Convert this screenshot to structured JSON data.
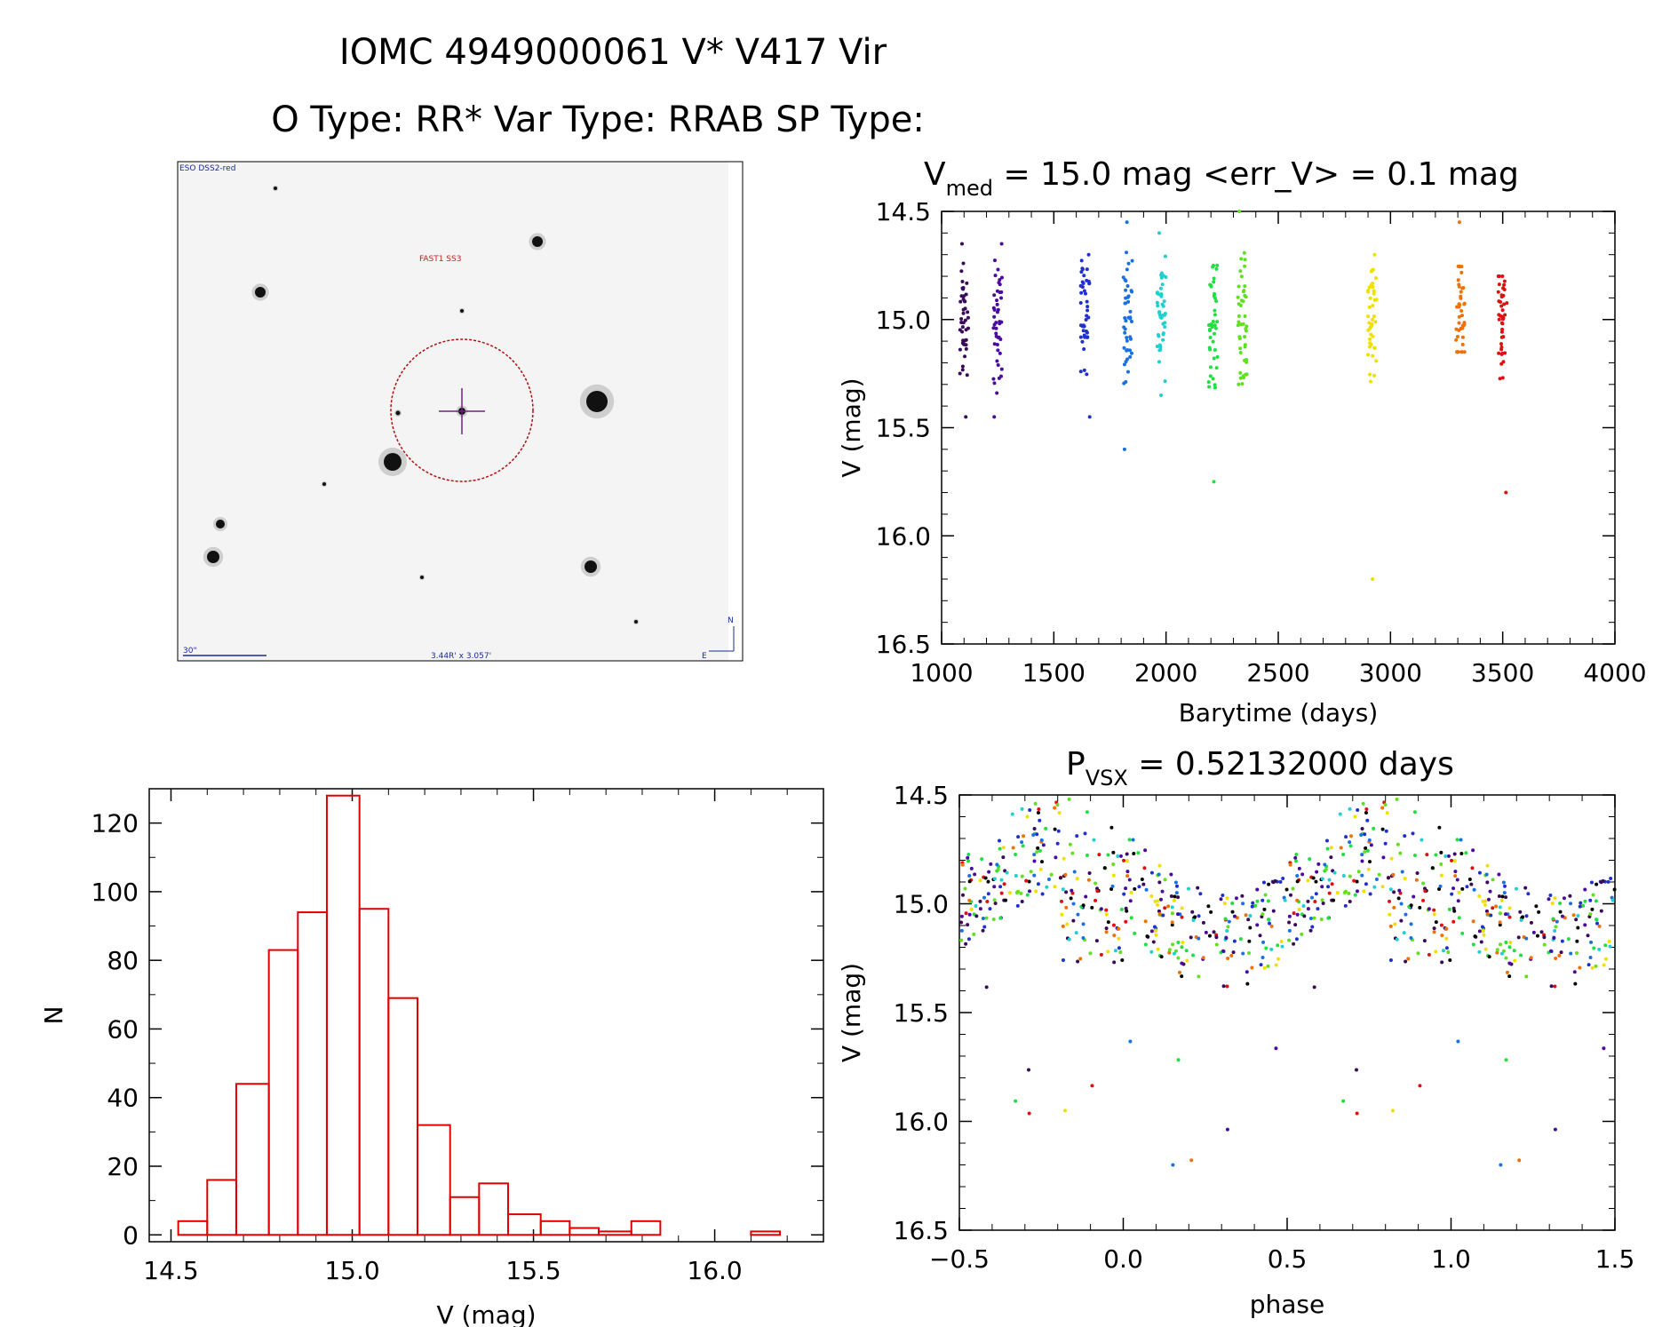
{
  "header": {
    "line1": "IOMC 4949000061    V* V417 Vir",
    "line2": "O Type: RR*  Var Type: RRAB  SP Type:"
  },
  "finder": {
    "survey_label": "ESO DSS2-red",
    "object_label": "FAST1 SS3",
    "scale_label": "30\"",
    "size_label": "3.44R' x 3.057'",
    "north_label": "N",
    "east_label": "E"
  },
  "chart_data": [
    {
      "id": "lightcurve",
      "type": "scatter",
      "title_main": "V",
      "title_sub": "med",
      "title_rest": " = 15.0 mag <err_V> = 0.1 mag",
      "xlabel": "Barytime (days)",
      "ylabel": "V (mag)",
      "xlim": [
        1000,
        4000
      ],
      "ylim": [
        16.5,
        14.5
      ],
      "xticks": [
        "1000",
        "1500",
        "2000",
        "2500",
        "3000",
        "3500",
        "4000"
      ],
      "yticks": [
        "14.5",
        "15.0",
        "15.5",
        "16.0",
        "16.5"
      ],
      "groups": [
        {
          "x": 1100,
          "color": "#3a0a5a",
          "ymin": 14.65,
          "ymax": 15.45
        },
        {
          "x": 1250,
          "color": "#4a0aa0",
          "ymin": 14.65,
          "ymax": 15.45
        },
        {
          "x": 1640,
          "color": "#2030d0",
          "ymin": 14.7,
          "ymax": 15.45
        },
        {
          "x": 1830,
          "color": "#1a70e0",
          "ymin": 14.55,
          "ymax": 15.6
        },
        {
          "x": 1980,
          "color": "#20d0d0",
          "ymin": 14.6,
          "ymax": 15.35
        },
        {
          "x": 2210,
          "color": "#20e040",
          "ymin": 14.75,
          "ymax": 15.75
        },
        {
          "x": 2340,
          "color": "#60e020",
          "ymin": 14.5,
          "ymax": 15.3
        },
        {
          "x": 2920,
          "color": "#f0e000",
          "ymin": 14.7,
          "ymax": 16.2
        },
        {
          "x": 3310,
          "color": "#f07000",
          "ymin": 14.55,
          "ymax": 15.15
        },
        {
          "x": 3500,
          "color": "#e01010",
          "ymin": 14.8,
          "ymax": 15.8
        }
      ]
    },
    {
      "id": "histogram",
      "type": "bar",
      "xlabel": "V (mag)",
      "ylabel": "N",
      "xlim": [
        14.44,
        16.3
      ],
      "ylim": [
        -2,
        130
      ],
      "xticks": [
        "14.5",
        "15.0",
        "15.5",
        "16.0"
      ],
      "yticks": [
        "0",
        "20",
        "40",
        "60",
        "80",
        "100",
        "120"
      ],
      "bin_edges": [
        14.52,
        14.6,
        14.68,
        14.77,
        14.85,
        14.93,
        15.02,
        15.1,
        15.18,
        15.27,
        15.35,
        15.43,
        15.52,
        15.6,
        15.68,
        15.77,
        15.85,
        15.93,
        16.02,
        16.1,
        16.18
      ],
      "values": [
        4,
        16,
        44,
        83,
        94,
        128,
        95,
        69,
        32,
        11,
        15,
        6,
        4,
        2,
        1,
        4,
        0,
        0,
        0,
        1
      ],
      "color": "#e00000"
    },
    {
      "id": "phased",
      "type": "scatter",
      "title_main": "P",
      "title_sub": "VSX",
      "title_rest": " = 0.52132000 days",
      "xlabel": "phase",
      "ylabel": "V (mag)",
      "xlim": [
        -0.5,
        1.5
      ],
      "ylim": [
        16.5,
        14.5
      ],
      "xticks": [
        "−0.5",
        "0.0",
        "0.5",
        "1.0",
        "1.5"
      ],
      "yticks": [
        "14.5",
        "15.0",
        "15.5",
        "16.0",
        "16.5"
      ],
      "palette": [
        "#3a0a5a",
        "#4a0aa0",
        "#2030d0",
        "#1a70e0",
        "#20d0d0",
        "#20e040",
        "#60e020",
        "#f0e000",
        "#f07000",
        "#e01010",
        "#000000"
      ]
    }
  ]
}
